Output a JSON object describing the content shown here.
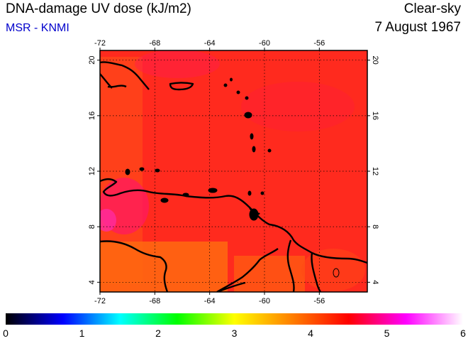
{
  "header": {
    "title": "DNA-damage UV dose (kJ/m2)",
    "credit": "MSR - KNMI",
    "sky_condition": "Clear-sky",
    "date": "7 August 1967"
  },
  "map": {
    "projection": "lat-lon",
    "lon_range": [
      -72,
      -52.5
    ],
    "lat_range": [
      3.3,
      20.7
    ],
    "lon_ticks": [
      -72,
      -68,
      -64,
      -60,
      -56
    ],
    "lon_tick_labels": [
      "-72",
      "-68",
      "-64",
      "-60",
      "-56"
    ],
    "lat_ticks": [
      4,
      8,
      12,
      16,
      20
    ],
    "lat_tick_labels": [
      "4",
      "8",
      "12",
      "16",
      "20"
    ],
    "grid": true,
    "field_description_colors": {
      "dominant": "#ff2a1e",
      "warm_land": "#ff5a10",
      "high_dose": "#ff1a60"
    }
  },
  "colorbar": {
    "min": 0,
    "max": 6,
    "tick_labels": [
      "0",
      "1",
      "2",
      "3",
      "4",
      "5",
      "6"
    ],
    "colors": [
      "#000000",
      "#0000ff",
      "#00ffff",
      "#00ff00",
      "#ffff00",
      "#ff8000",
      "#ff0000",
      "#ff00ff",
      "#ffffff"
    ]
  }
}
